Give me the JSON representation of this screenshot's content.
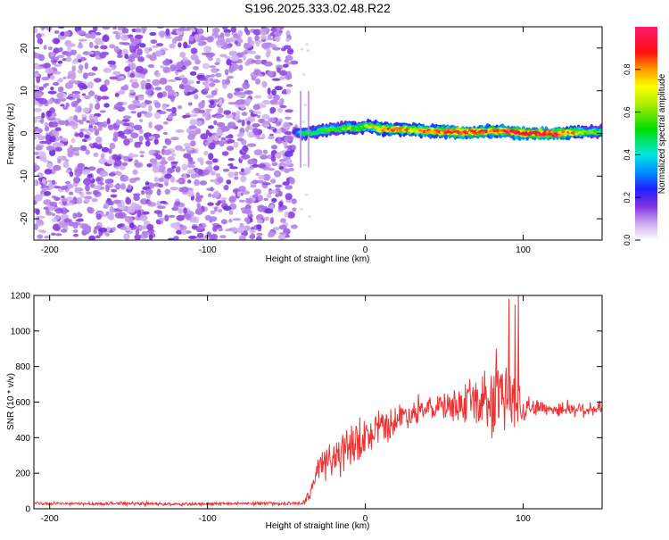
{
  "title": "S196.2025.333.02.48.R22",
  "chart_data": [
    {
      "type": "heatmap",
      "xlabel": "Height of straight line (km)",
      "ylabel": "Frequency (Hz)",
      "xlim": [
        -210,
        150
      ],
      "ylim": [
        -25,
        25
      ],
      "xticks": [
        -200,
        -100,
        0,
        100
      ],
      "yticks": [
        -20,
        -10,
        0,
        10,
        20
      ],
      "colorbar": {
        "label": "Normalized spectral amplitude",
        "range": [
          0,
          1
        ],
        "ticks": [
          0.0,
          0.2,
          0.4,
          0.6,
          0.8
        ],
        "colormap": "white-purple-blue-cyan-green-yellow-red-pink"
      },
      "noise_region_x": [
        -210,
        -45
      ],
      "band": {
        "x": [
          -45,
          -40,
          -35,
          -30,
          -25,
          -20,
          -15,
          -10,
          -5,
          0,
          5,
          10,
          20,
          30,
          40,
          50,
          60,
          70,
          80,
          90,
          100,
          110,
          120,
          130,
          140,
          150
        ],
        "center_hz": [
          0.5,
          0.0,
          0.2,
          0.4,
          0.8,
          1.0,
          1.2,
          1.5,
          1.0,
          1.8,
          1.5,
          1.0,
          1.0,
          0.8,
          0.5,
          0.5,
          0.3,
          0.3,
          0.5,
          0.5,
          0.0,
          0.0,
          0.0,
          0.2,
          0.3,
          0.5
        ],
        "amplitude": [
          0.2,
          0.45,
          0.5,
          0.5,
          0.55,
          0.5,
          0.55,
          0.6,
          0.55,
          0.6,
          0.7,
          0.8,
          0.75,
          0.75,
          0.8,
          0.85,
          0.9,
          0.9,
          0.85,
          0.9,
          0.95,
          0.95,
          0.9,
          0.8,
          0.55,
          0.5
        ]
      }
    },
    {
      "type": "line",
      "xlabel": "Height of straight line (km)",
      "ylabel": "SNR (10 * v/v)",
      "xlim": [
        -210,
        150
      ],
      "ylim": [
        0,
        1200
      ],
      "xticks": [
        -200,
        -100,
        0,
        100
      ],
      "yticks": [
        0,
        200,
        400,
        600,
        800,
        1000,
        1200
      ],
      "color": "#ee3333",
      "series": [
        {
          "x": [
            -210,
            -180,
            -150,
            -120,
            -90,
            -60,
            -40,
            -35,
            -32,
            -30,
            -25,
            -20,
            -15,
            -10,
            -5,
            0,
            5,
            10,
            15,
            20,
            25,
            30,
            35,
            40,
            45,
            50,
            55,
            60,
            65,
            70,
            75,
            80,
            85,
            90,
            93,
            95,
            97,
            100,
            105,
            110,
            115,
            120,
            125,
            130,
            135,
            140,
            145,
            150
          ],
          "y": [
            30,
            28,
            30,
            25,
            28,
            30,
            30,
            80,
            180,
            230,
            260,
            290,
            310,
            330,
            370,
            390,
            420,
            450,
            480,
            500,
            530,
            540,
            550,
            560,
            570,
            575,
            580,
            585,
            590,
            590,
            600,
            610,
            600,
            640,
            620,
            600,
            580,
            580,
            570,
            570,
            565,
            560,
            560,
            560,
            560,
            560,
            560,
            560
          ],
          "spread": [
            10,
            10,
            12,
            10,
            10,
            10,
            10,
            40,
            80,
            120,
            120,
            140,
            150,
            150,
            140,
            130,
            120,
            110,
            110,
            100,
            90,
            80,
            80,
            80,
            80,
            90,
            100,
            110,
            130,
            150,
            200,
            240,
            260,
            280,
            300,
            260,
            200,
            100,
            60,
            50,
            50,
            50,
            50,
            50,
            50,
            50,
            50,
            50
          ]
        }
      ],
      "peaks": [
        {
          "x": 83,
          "y": 900
        },
        {
          "x": 91,
          "y": 1180
        },
        {
          "x": 95,
          "y": 1150
        },
        {
          "x": 97,
          "y": 1200
        }
      ]
    }
  ]
}
